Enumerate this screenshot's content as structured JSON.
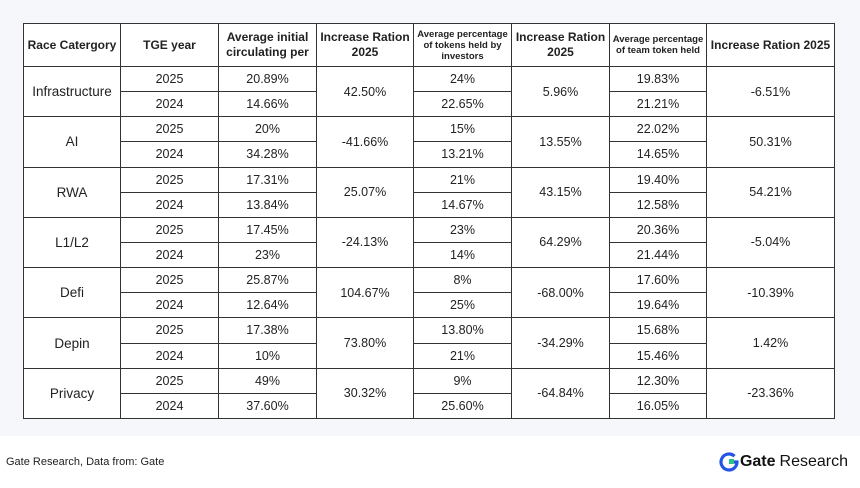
{
  "table": {
    "headers": [
      "Race Catergory",
      "TGE year",
      "Average initial circulating per",
      "Increase Ration 2025",
      "Average percentage of tokens held by investors",
      "Increase Ration 2025",
      "Average percentage of team token held",
      "Increase Ration 2025"
    ],
    "rows": [
      {
        "category": "Infrastructure",
        "y1": "2025",
        "y2": "2024",
        "circ1": "20.89%",
        "circ2": "14.66%",
        "circ_inc": "42.50%",
        "inv1": "24%",
        "inv2": "22.65%",
        "inv_inc": "5.96%",
        "team1": "19.83%",
        "team2": "21.21%",
        "team_inc": "-6.51%"
      },
      {
        "category": "AI",
        "y1": "2025",
        "y2": "2024",
        "circ1": "20%",
        "circ2": "34.28%",
        "circ_inc": "-41.66%",
        "inv1": "15%",
        "inv2": "13.21%",
        "inv_inc": "13.55%",
        "team1": "22.02%",
        "team2": "14.65%",
        "team_inc": "50.31%"
      },
      {
        "category": "RWA",
        "y1": "2025",
        "y2": "2024",
        "circ1": "17.31%",
        "circ2": "13.84%",
        "circ_inc": "25.07%",
        "inv1": "21%",
        "inv2": "14.67%",
        "inv_inc": "43.15%",
        "team1": "19.40%",
        "team2": "12.58%",
        "team_inc": "54.21%"
      },
      {
        "category": "L1/L2",
        "y1": "2025",
        "y2": "2024",
        "circ1": "17.45%",
        "circ2": "23%",
        "circ_inc": "-24.13%",
        "inv1": "23%",
        "inv2": "14%",
        "inv_inc": "64.29%",
        "team1": "20.36%",
        "team2": "21.44%",
        "team_inc": "-5.04%"
      },
      {
        "category": "Defi",
        "y1": "2025",
        "y2": "2024",
        "circ1": "25.87%",
        "circ2": "12.64%",
        "circ_inc": "104.67%",
        "inv1": "8%",
        "inv2": "25%",
        "inv_inc": "-68.00%",
        "team1": "17.60%",
        "team2": "19.64%",
        "team_inc": "-10.39%"
      },
      {
        "category": "Depin",
        "y1": "2025",
        "y2": "2024",
        "circ1": "17.38%",
        "circ2": "10%",
        "circ_inc": "73.80%",
        "inv1": "13.80%",
        "inv2": "21%",
        "inv_inc": "-34.29%",
        "team1": "15.68%",
        "team2": "15.46%",
        "team_inc": "1.42%"
      },
      {
        "category": "Privacy",
        "y1": "2025",
        "y2": "2024",
        "circ1": "49%",
        "circ2": "37.60%",
        "circ_inc": "30.32%",
        "inv1": "9%",
        "inv2": "25.60%",
        "inv_inc": "-64.84%",
        "team1": "12.30%",
        "team2": "16.05%",
        "team_inc": "-23.36%"
      }
    ]
  },
  "footer": {
    "source": "Gate Research, Data from: Gate",
    "brand_name": "Gate",
    "brand_suffix": "Research"
  },
  "colors": {
    "brand_blue": "#2354e6",
    "grid_line": "#333333",
    "background": "#f5f7fa"
  },
  "icons": {
    "brand_logo": "gate-logo-icon"
  }
}
